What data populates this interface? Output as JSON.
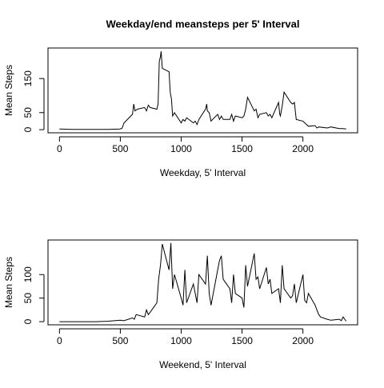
{
  "chart_data": [
    {
      "type": "line",
      "title": "Weekday/end meansteps per 5' Interval",
      "xlabel": "Weekday, 5' Interval",
      "ylabel": "Mean Steps",
      "x": [
        0,
        100,
        200,
        300,
        400,
        500,
        515,
        530,
        545,
        600,
        610,
        620,
        640,
        700,
        715,
        730,
        745,
        800,
        810,
        820,
        830,
        835,
        845,
        900,
        910,
        920,
        930,
        945,
        1000,
        1015,
        1030,
        1045,
        1100,
        1115,
        1130,
        1145,
        1200,
        1210,
        1215,
        1230,
        1245,
        1300,
        1315,
        1330,
        1345,
        1400,
        1415,
        1430,
        1445,
        1500,
        1515,
        1530,
        1545,
        1600,
        1615,
        1630,
        1645,
        1700,
        1715,
        1730,
        1745,
        1800,
        1810,
        1815,
        1830,
        1845,
        1900,
        1915,
        1930,
        1945,
        2000,
        2015,
        2030,
        2045,
        2100,
        2115,
        2130,
        2200,
        2230,
        2300,
        2330,
        2355
      ],
      "series": [
        {
          "name": "Weekday",
          "color": "#000000",
          "values": [
            2,
            1,
            1,
            1,
            1,
            2,
            5,
            20,
            25,
            45,
            75,
            55,
            60,
            65,
            55,
            72,
            65,
            60,
            75,
            200,
            215,
            230,
            180,
            170,
            110,
            90,
            40,
            50,
            20,
            30,
            25,
            35,
            20,
            25,
            15,
            30,
            60,
            75,
            55,
            50,
            25,
            45,
            30,
            40,
            30,
            30,
            45,
            25,
            40,
            35,
            40,
            60,
            95,
            55,
            60,
            35,
            45,
            50,
            40,
            45,
            35,
            80,
            45,
            40,
            70,
            110,
            80,
            75,
            80,
            30,
            25,
            20,
            15,
            10,
            12,
            5,
            8,
            5,
            8,
            3,
            3,
            2
          ]
        }
      ],
      "xlim": [
        -94.2,
        2449.2
      ],
      "ylim": [
        -9.2,
        239.6
      ],
      "xticks": [
        0,
        500,
        1000,
        1500,
        2000
      ],
      "yticks": [
        0,
        50,
        150
      ]
    },
    {
      "type": "line",
      "xlabel": "Weekend, 5' Interval",
      "ylabel": "Mean Steps",
      "x": [
        0,
        100,
        200,
        300,
        400,
        500,
        530,
        600,
        615,
        630,
        700,
        715,
        730,
        745,
        800,
        815,
        830,
        845,
        900,
        915,
        930,
        945,
        1000,
        1015,
        1030,
        1045,
        1100,
        1115,
        1130,
        1145,
        1200,
        1215,
        1230,
        1245,
        1300,
        1315,
        1330,
        1345,
        1400,
        1415,
        1430,
        1445,
        1500,
        1515,
        1530,
        1545,
        1600,
        1615,
        1630,
        1645,
        1700,
        1715,
        1730,
        1745,
        1800,
        1815,
        1830,
        1845,
        1900,
        1915,
        1930,
        1945,
        2000,
        2015,
        2030,
        2045,
        2100,
        2115,
        2130,
        2145,
        2200,
        2230,
        2300,
        2315,
        2330,
        2355
      ],
      "series": [
        {
          "name": "Weekend",
          "color": "#000000",
          "values": [
            0,
            0,
            0,
            0,
            1,
            3,
            2,
            8,
            5,
            15,
            10,
            25,
            15,
            20,
            40,
            90,
            120,
            165,
            110,
            167,
            70,
            100,
            50,
            35,
            110,
            40,
            80,
            60,
            40,
            100,
            80,
            140,
            60,
            35,
            110,
            130,
            140,
            90,
            70,
            40,
            100,
            60,
            50,
            30,
            120,
            75,
            145,
            90,
            95,
            70,
            115,
            80,
            90,
            60,
            70,
            40,
            120,
            70,
            50,
            55,
            80,
            40,
            100,
            45,
            40,
            60,
            35,
            25,
            15,
            10,
            5,
            3,
            5,
            2,
            10,
            1
          ]
        }
      ],
      "xlim": [
        -94.2,
        2449.2
      ],
      "ylim": [
        -6.7,
        173.5
      ],
      "xticks": [
        0,
        500,
        1000,
        1500,
        2000
      ],
      "yticks": [
        0,
        50,
        100
      ]
    }
  ]
}
